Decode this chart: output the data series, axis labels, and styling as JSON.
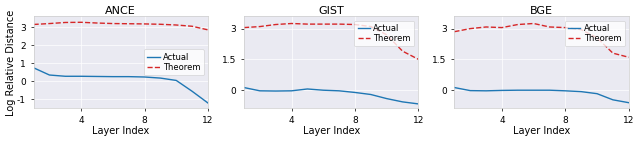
{
  "titles": [
    "ANCE",
    "GIST",
    "BGE"
  ],
  "xlabel": "Layer Index",
  "ylabel": "Log Relative Distance",
  "actual_color": "#1f77b4",
  "theorem_color": "#d62728",
  "legend_labels": [
    "Actual",
    "Theorem"
  ],
  "bg_color": "#eaeaf2",
  "plots": [
    {
      "actual_x": [
        1,
        2,
        3,
        4,
        5,
        6,
        7,
        8,
        9,
        10,
        11,
        12
      ],
      "actual_y": [
        0.75,
        0.35,
        0.28,
        0.28,
        0.27,
        0.26,
        0.26,
        0.24,
        0.18,
        0.05,
        -0.55,
        -1.2
      ],
      "theorem_x": [
        1,
        2,
        3,
        4,
        5,
        6,
        7,
        8,
        9,
        10,
        11,
        12
      ],
      "theorem_y": [
        3.15,
        3.2,
        3.26,
        3.27,
        3.23,
        3.2,
        3.19,
        3.18,
        3.16,
        3.12,
        3.05,
        2.85
      ],
      "yticks": [
        -1,
        0,
        1,
        2,
        3
      ],
      "ylim": [
        -1.5,
        3.6
      ],
      "legend_loc": "center right",
      "legend_bbox": null
    },
    {
      "actual_x": [
        1,
        2,
        3,
        4,
        5,
        6,
        7,
        8,
        9,
        10,
        11,
        12
      ],
      "actual_y": [
        0.12,
        -0.04,
        -0.05,
        -0.04,
        0.05,
        -0.01,
        -0.04,
        -0.12,
        -0.22,
        -0.42,
        -0.58,
        -0.68
      ],
      "theorem_x": [
        1,
        2,
        3,
        4,
        5,
        6,
        7,
        8,
        9,
        10,
        11,
        12
      ],
      "theorem_y": [
        3.05,
        3.1,
        3.2,
        3.25,
        3.22,
        3.22,
        3.22,
        3.2,
        3.1,
        2.7,
        1.9,
        1.5
      ],
      "yticks": [
        0,
        1.5,
        3
      ],
      "ylim": [
        -0.9,
        3.6
      ],
      "legend_loc": "upper right",
      "legend_bbox": null
    },
    {
      "actual_x": [
        1,
        2,
        3,
        4,
        5,
        6,
        7,
        8,
        9,
        10,
        11,
        12
      ],
      "actual_y": [
        0.12,
        -0.03,
        -0.04,
        -0.02,
        -0.01,
        -0.01,
        -0.01,
        -0.04,
        -0.08,
        -0.18,
        -0.48,
        -0.62
      ],
      "theorem_x": [
        1,
        2,
        3,
        4,
        5,
        6,
        7,
        8,
        9,
        10,
        11,
        12
      ],
      "theorem_y": [
        2.85,
        3.0,
        3.08,
        3.05,
        3.2,
        3.25,
        3.08,
        3.05,
        2.95,
        2.55,
        1.8,
        1.6
      ],
      "yticks": [
        0,
        1.5,
        3
      ],
      "ylim": [
        -0.9,
        3.6
      ],
      "legend_loc": "upper right",
      "legend_bbox": null
    }
  ]
}
